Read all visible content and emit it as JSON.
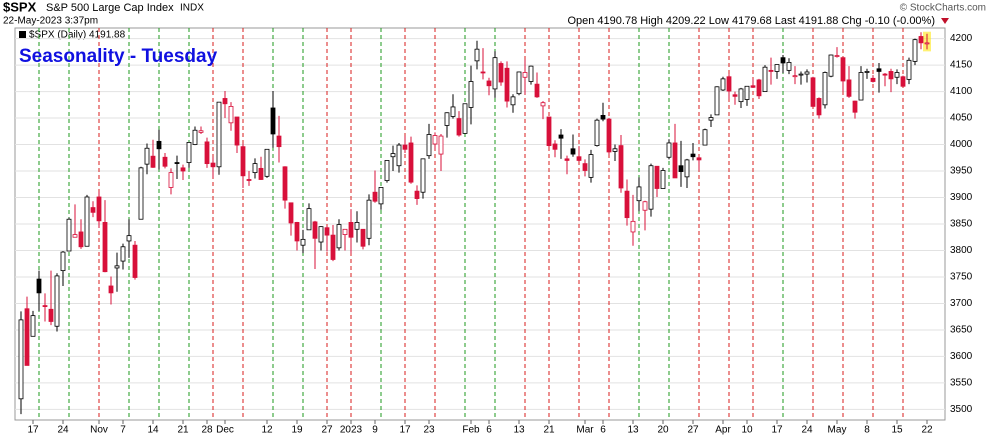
{
  "chart_data": {
    "type": "candlestick",
    "header": {
      "symbol": "$SPX",
      "name": "S&P 500 Large Cap Index",
      "exchange": "INDX",
      "timestamp": "22-May-2023 3:37pm",
      "quote": "Open 4190.78  High 4209.22  Low 4179.68  Last 4191.88  Chg -0.10 (-0.00%)",
      "copyright": "© StockCharts.com",
      "legend": "$SPX (Daily) 4191.88"
    },
    "title": "Seasonality - Tuesday",
    "categories": [
      null,
      null,
      "17",
      null,
      null,
      null,
      null,
      "24",
      null,
      null,
      null,
      null,
      null,
      "Nov",
      null,
      null,
      null,
      "7",
      null,
      null,
      null,
      null,
      "14",
      null,
      null,
      null,
      null,
      "21",
      null,
      null,
      null,
      "28",
      null,
      null,
      "Dec",
      null,
      null,
      null,
      null,
      null,
      null,
      "12",
      null,
      null,
      null,
      null,
      "19",
      null,
      null,
      null,
      null,
      "27",
      null,
      null,
      null,
      "2023",
      null,
      null,
      null,
      "9",
      null,
      null,
      null,
      null,
      "17",
      null,
      null,
      null,
      "23",
      null,
      null,
      null,
      null,
      null,
      null,
      "Feb",
      null,
      null,
      "6",
      null,
      null,
      null,
      null,
      "13",
      null,
      null,
      null,
      null,
      "21",
      null,
      null,
      null,
      null,
      null,
      "Mar",
      null,
      null,
      "6",
      null,
      null,
      null,
      null,
      "13",
      null,
      null,
      null,
      null,
      "20",
      null,
      null,
      null,
      null,
      "27",
      null,
      null,
      null,
      null,
      "Apr",
      null,
      null,
      null,
      "10",
      null,
      null,
      null,
      null,
      "17",
      null,
      null,
      null,
      null,
      "24",
      null,
      null,
      null,
      null,
      "May",
      null,
      null,
      null,
      null,
      "8",
      null,
      null,
      null,
      null,
      "15",
      null,
      null,
      null,
      null,
      "22"
    ],
    "open": [
      3520,
      3690,
      3638,
      3746,
      3696,
      3689,
      3657,
      3762,
      3799,
      3825,
      3835,
      3808,
      3881,
      3901,
      3853,
      3733,
      3767,
      3780,
      3818,
      3810,
      3859,
      3963,
      3978,
      4006,
      3976,
      3919,
      3966,
      3956,
      3966,
      4000,
      4023,
      4005,
      3965,
      3958,
      4087,
      4041,
      4052,
      3996,
      3934,
      3947,
      3955,
      3940,
      4069,
      4016,
      3958,
      3890,
      3853,
      3810,
      3839,
      3854,
      3816,
      3843,
      3829,
      3805,
      3830,
      3853,
      3840,
      3840,
      3823,
      3910,
      3888,
      3932,
      3977,
      3960,
      3999,
      4003,
      3912,
      3910,
      3979,
      4001,
      3982,
      4036,
      4053,
      4049,
      4021,
      4070,
      4158,
      4137,
      4120,
      4105,
      4153,
      4144,
      4075,
      4096,
      4127,
      4119,
      4114,
      4073,
      4052,
      4001,
      4018,
      3973,
      3992,
      3977,
      3964,
      3938,
      3998,
      4055,
      4048,
      3987,
      3998,
      3912,
      3835,
      3894,
      3876,
      3878,
      3959,
      3917,
      3976,
      4003,
      3960,
      3939,
      3982,
      3975,
      3999,
      4046,
      4056,
      4103,
      4128,
      4094,
      4081,
      4085,
      4111,
      4122,
      4100,
      4140,
      4138,
      4164,
      4140,
      4130,
      4133,
      4133,
      4126,
      4087,
      4075,
      4129,
      4167,
      4164,
      4122,
      4082,
      4084,
      4136,
      4125,
      4143,
      4133,
      4138,
      4127,
      4128,
      4123,
      4157,
      4204,
      4190.78
    ],
    "high": [
      3685,
      3713,
      3686,
      3762,
      3719,
      3762,
      3757,
      3799,
      3862,
      3887,
      3859,
      3905,
      3893,
      3911,
      3895,
      3751,
      3796,
      3813,
      3859,
      3818,
      3958,
      4002,
      4009,
      4028,
      3984,
      3955,
      3979,
      3962,
      4004,
      4034,
      4034,
      4013,
      3976,
      4080,
      4101,
      4080,
      4052,
      4002,
      3950,
      3974,
      3977,
      3991,
      4101,
      4054,
      3959,
      3890,
      3854,
      3839,
      3889,
      3856,
      3846,
      3846,
      3848,
      3859,
      3840,
      3878,
      3874,
      3840,
      3906,
      3951,
      3919,
      3970,
      3998,
      4003,
      4016,
      4015,
      3923,
      3973,
      4039,
      4023,
      4020,
      4061,
      4095,
      4063,
      4077,
      4149,
      4196,
      4182,
      4126,
      4176,
      4157,
      4157,
      4095,
      4138,
      4160,
      4149,
      4136,
      4082,
      4052,
      4008,
      4029,
      3979,
      4019,
      3997,
      3972,
      3990,
      4049,
      4079,
      4050,
      4000,
      4018,
      3934,
      3905,
      3938,
      3894,
      3964,
      3959,
      3956,
      4010,
      4039,
      4007,
      3973,
      4003,
      3979,
      4030,
      4057,
      4110,
      4128,
      4133,
      4100,
      4107,
      4110,
      4125,
      4124,
      4150,
      4164,
      4151,
      4169,
      4163,
      4148,
      4138,
      4142,
      4128,
      4089,
      4138,
      4170,
      4184,
      4164,
      4148,
      4083,
      4148,
      4143,
      4131,
      4154,
      4135,
      4143,
      4142,
      4130,
      4164,
      4200,
      4212,
      4209.22
    ],
    "low": [
      3491,
      3584,
      3638,
      3686,
      3666,
      3659,
      3647,
      3733,
      3799,
      3825,
      3803,
      3808,
      3863,
      3843,
      3759,
      3698,
      3722,
      3764,
      3786,
      3745,
      3859,
      3944,
      3956,
      3953,
      3955,
      3906,
      3935,
      3933,
      3956,
      3999,
      4020,
      3956,
      3937,
      3943,
      4050,
      4026,
      3984,
      3918,
      3922,
      3936,
      3933,
      3937,
      3994,
      3966,
      3879,
      3828,
      3800,
      3795,
      3839,
      3765,
      3800,
      3798,
      3780,
      3800,
      3800,
      3794,
      3815,
      3802,
      3810,
      3890,
      3877,
      3928,
      3950,
      3947,
      3984,
      3926,
      3886,
      3898,
      3973,
      3990,
      3950,
      4013,
      4049,
      4015,
      4021,
      4038,
      4142,
      4123,
      4093,
      4088,
      4111,
      4070,
      4060,
      4093,
      4095,
      4113,
      4088,
      4048,
      3995,
      3976,
      3973,
      3944,
      3977,
      3968,
      3940,
      3928,
      3996,
      4044,
      3980,
      3969,
      3909,
      3847,
      3809,
      3874,
      3838,
      3864,
      3901,
      3917,
      3972,
      3937,
      3920,
      3918,
      3970,
      3951,
      3999,
      4033,
      4056,
      4101,
      4086,
      4075,
      4069,
      4073,
      4108,
      4086,
      4100,
      4113,
      4124,
      4135,
      4133,
      4114,
      4113,
      4117,
      4072,
      4049,
      4068,
      4127,
      4164,
      4101,
      4088,
      4049,
      4084,
      4124,
      4117,
      4098,
      4110,
      4099,
      4114,
      4110,
      4114,
      4150,
      4180,
      4179.68
    ],
    "close": [
      3669,
      3583,
      3677,
      3720,
      3695,
      3666,
      3752,
      3797,
      3859,
      3830,
      3807,
      3901,
      3872,
      3856,
      3760,
      3720,
      3771,
      3807,
      3828,
      3749,
      3956,
      3993,
      3957,
      3992,
      3959,
      3947,
      3965,
      3950,
      4004,
      4027,
      4026,
      3964,
      3958,
      4080,
      4077,
      4072,
      3999,
      3941,
      3933,
      3964,
      3934,
      3991,
      4020,
      3996,
      3895,
      3852,
      3818,
      3821,
      3879,
      3823,
      3845,
      3829,
      3783,
      3849,
      3840,
      3825,
      3853,
      3808,
      3895,
      3893,
      3919,
      3970,
      3983,
      3999,
      3991,
      3929,
      3898,
      3973,
      4019,
      4017,
      4016,
      4060,
      4071,
      4018,
      4077,
      4119,
      4180,
      4136,
      4111,
      4164,
      4118,
      4082,
      4090,
      4137,
      4136,
      4148,
      4090,
      4079,
      3998,
      3991,
      4012,
      3970,
      3982,
      3970,
      3951,
      3981,
      4046,
      4048,
      3986,
      3992,
      3918,
      3862,
      3855,
      3920,
      3892,
      3960,
      3917,
      3951,
      4003,
      3937,
      3949,
      3971,
      3977,
      3971,
      4028,
      4051,
      4109,
      4124,
      4101,
      4091,
      4105,
      4110,
      4108,
      4092,
      4146,
      4138,
      4151,
      4154,
      4155,
      4130,
      4133,
      4137,
      4072,
      4056,
      4136,
      4169,
      4168,
      4120,
      4091,
      4061,
      4136,
      4138,
      4119,
      4138,
      4131,
      4124,
      4136,
      4110,
      4159,
      4198,
      4192,
      4191.88
    ],
    "tuesday_lines": [
      3,
      8,
      13,
      18,
      23,
      28,
      32,
      37,
      42,
      47,
      51,
      55,
      60,
      64,
      69,
      74,
      79,
      84,
      88,
      93,
      98,
      103,
      108,
      113,
      118,
      122,
      127,
      132,
      137,
      142,
      147
    ],
    "colors": {
      "up": "#000000",
      "down": "#d8103a",
      "line_up": "#1e9a1e",
      "line_down": "#d81e1e",
      "title": "#1010e0"
    },
    "ylim": [
      3480,
      4220
    ],
    "yticks": [
      3500,
      3550,
      3600,
      3650,
      3700,
      3750,
      3800,
      3850,
      3900,
      3950,
      4000,
      4050,
      4100,
      4150,
      4200
    ],
    "grid": true
  }
}
